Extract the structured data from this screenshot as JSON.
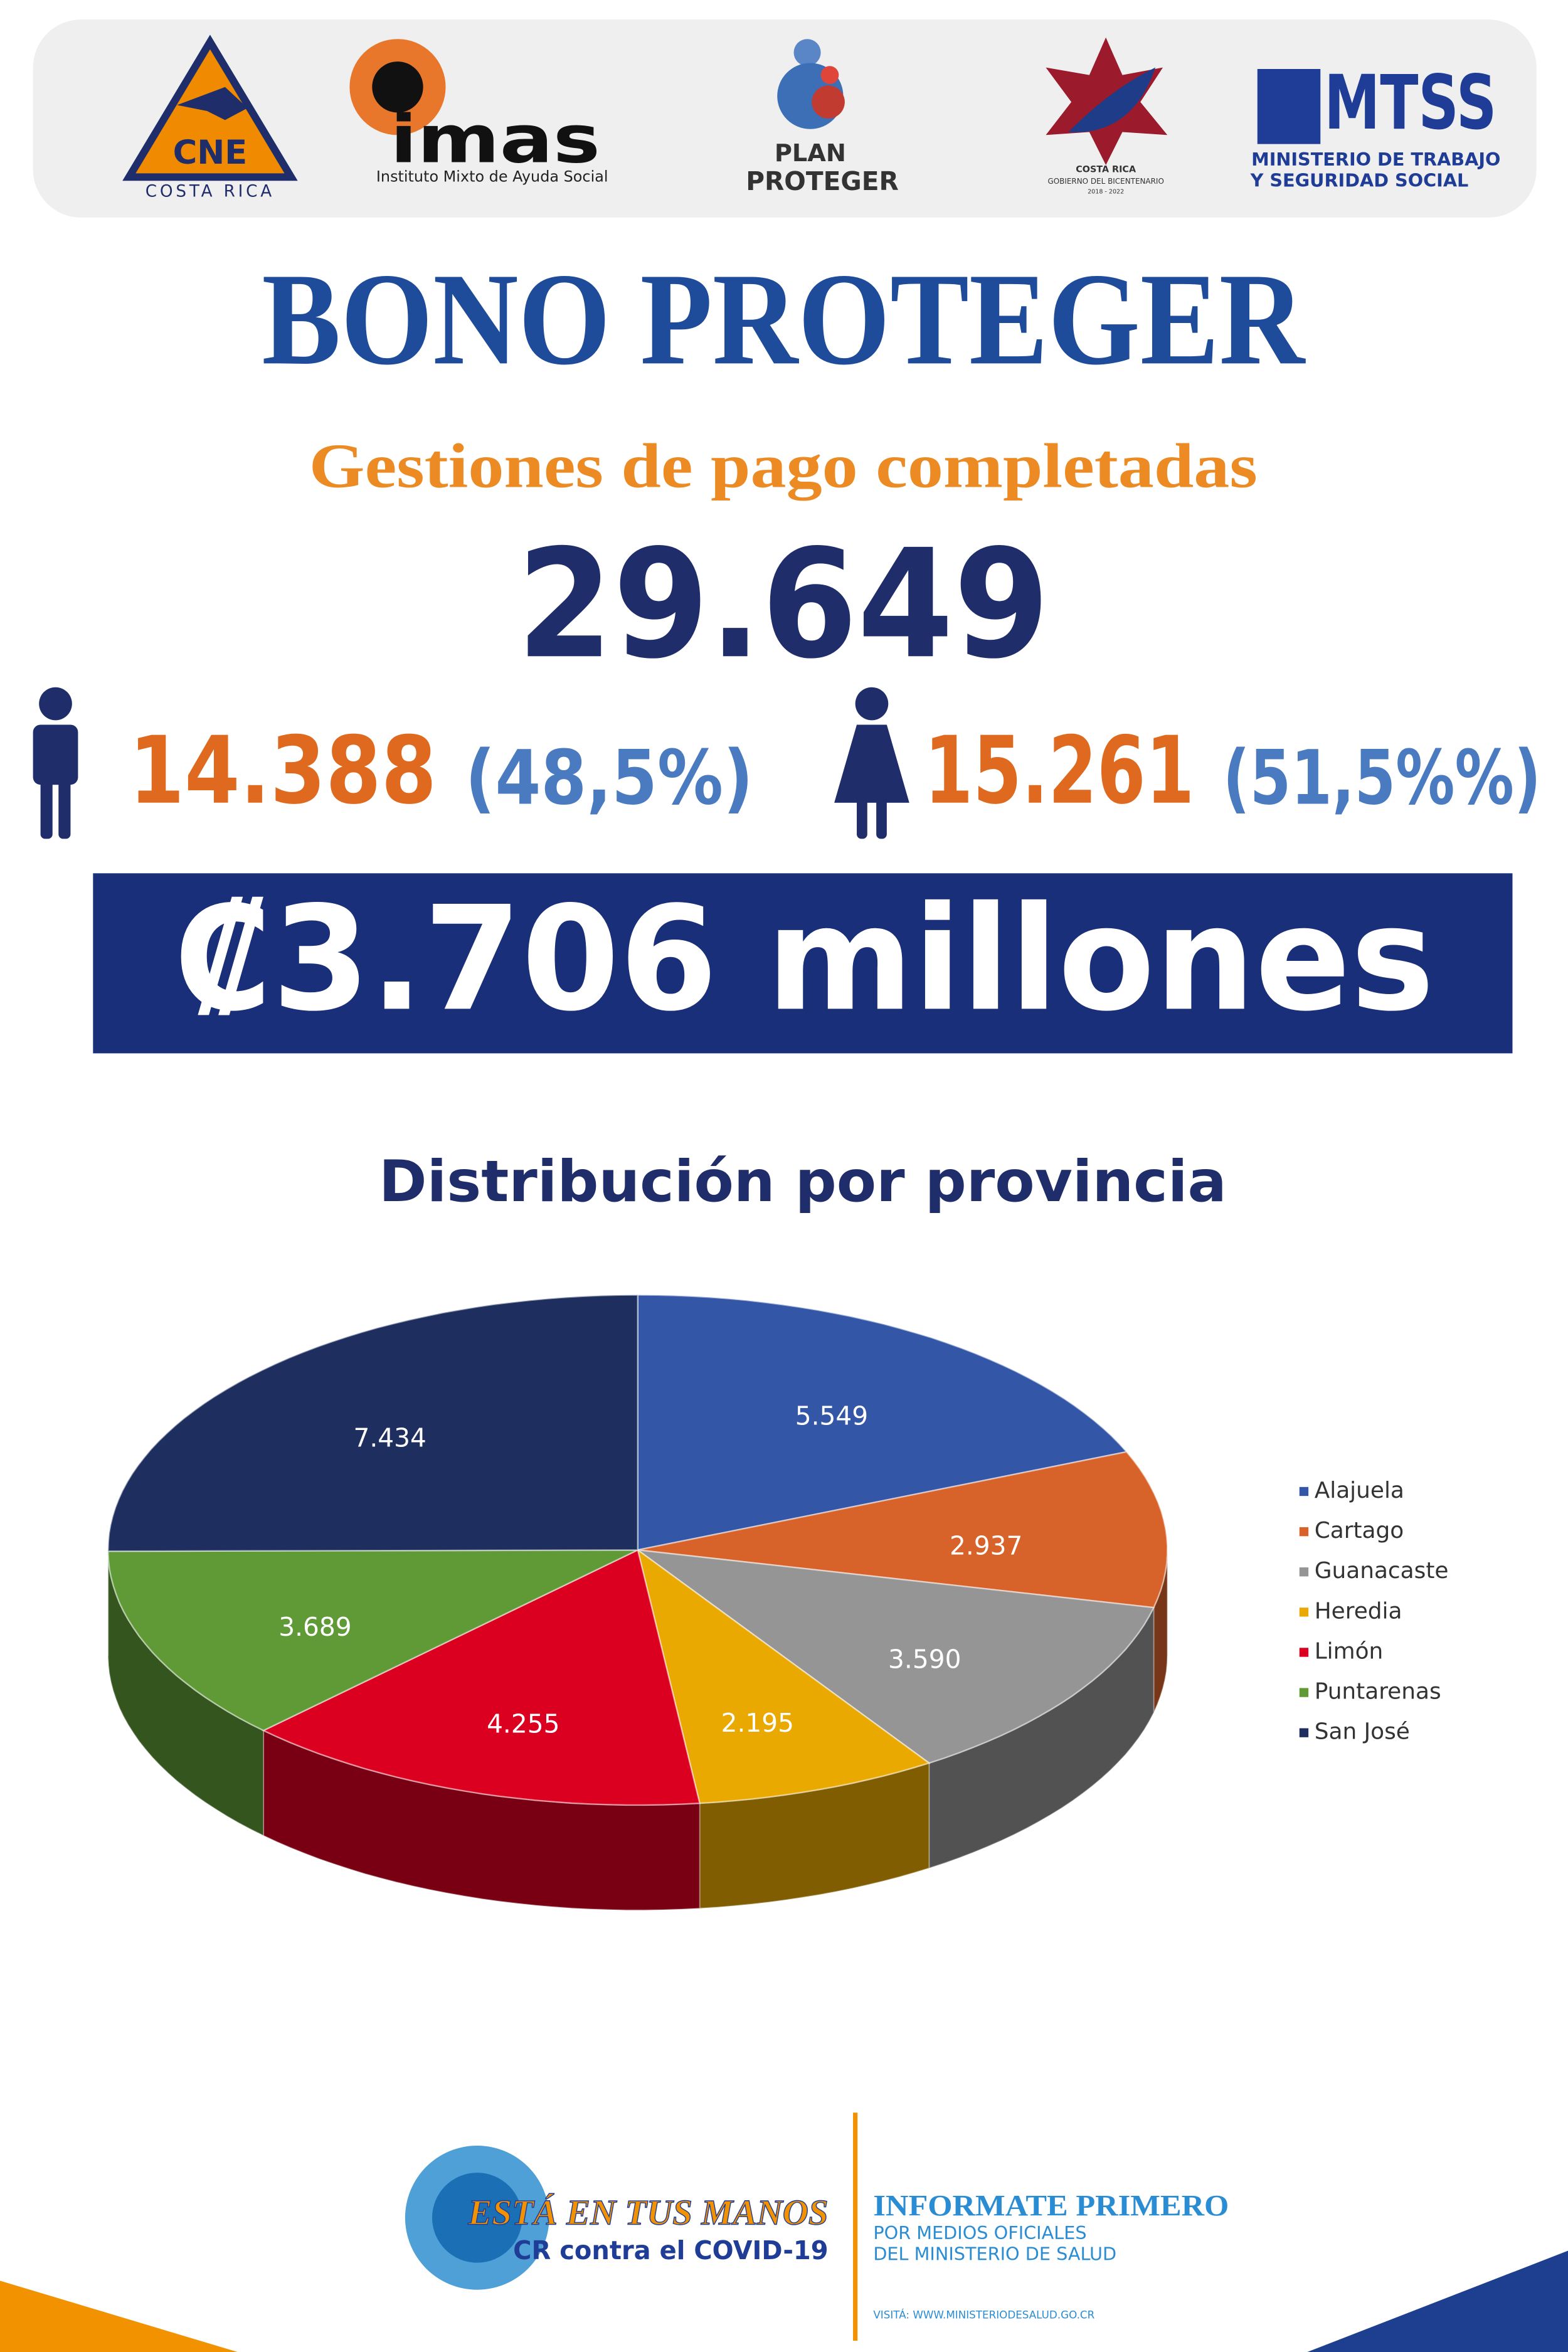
{
  "header": {
    "logos": {
      "cne": "CNE",
      "cne_sub": "COSTA RICA",
      "imas": "imas",
      "imas_sub": "Instituto Mixto de Ayuda Social",
      "plan_1": "PLAN",
      "plan_2": "PROTEGER",
      "gob_1": "COSTA RICA",
      "gob_2": "GOBIERNO DEL BICENTENARIO",
      "gob_3": "2018 - 2022",
      "mtss": "MTSS",
      "mtss_1": "MINISTERIO DE TRABAJO",
      "mtss_2": "Y SEGURIDAD SOCIAL"
    }
  },
  "title": "BONO PROTEGER",
  "subtitle": "Gestiones de pago completadas",
  "total": "29.649",
  "men": {
    "count": "14.388",
    "share": "(48,5%)"
  },
  "women": {
    "count": "15.261",
    "share": "(51,5%%)"
  },
  "amount": "₡3.706 millones",
  "chart_data": {
    "type": "pie",
    "title": "Distribución por provincia",
    "categories": [
      "Alajuela",
      "Cartago",
      "Guanacaste",
      "Heredia",
      "Limón",
      "Puntarenas",
      "San José"
    ],
    "values": [
      5549,
      2937,
      3590,
      2195,
      4255,
      3689,
      7434
    ],
    "value_labels": [
      "5.549",
      "2.937",
      "3.590",
      "2.195",
      "4.255",
      "3.689",
      "7.434"
    ],
    "colors": [
      "#3456a6",
      "#d8632a",
      "#959595",
      "#e9a900",
      "#db0020",
      "#5f9a36",
      "#1e2f5f"
    ],
    "legend": "right"
  },
  "footer": {
    "slogan_1": "ESTÁ EN TUS MANOS",
    "slogan_2": "CR contra el COVID-19",
    "info_1": "INFORMATE PRIMERO",
    "info_2": "POR MEDIOS OFICIALES",
    "info_3": "DEL MINISTERIO DE SALUD",
    "info_4": "VISITÁ: WWW.MINISTERIODESALUD.GO.CR"
  }
}
